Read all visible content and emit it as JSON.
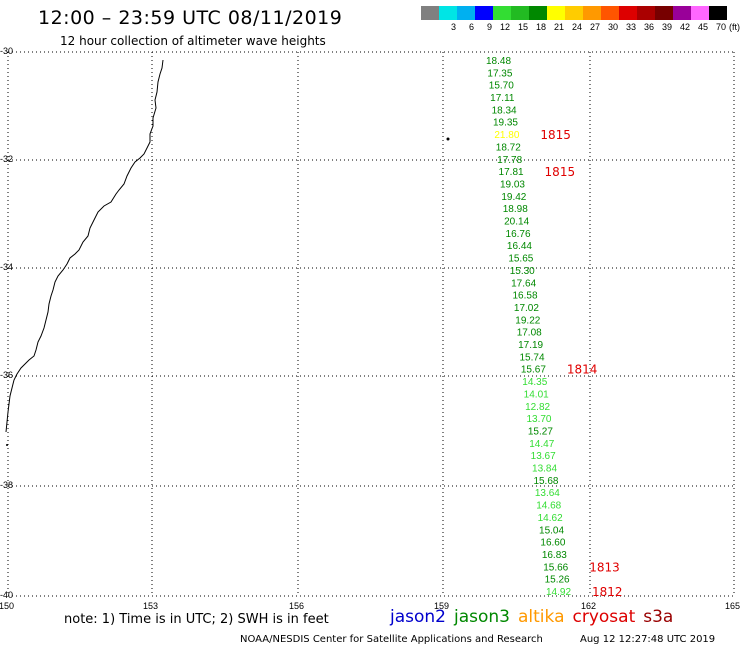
{
  "header": {
    "title": "12:00 – 23:59 UTC 08/11/2019",
    "subtitle": "12 hour collection of altimeter wave heights"
  },
  "legend": {
    "unit": "(ft)",
    "bins": [
      {
        "label": "",
        "color": "#808080"
      },
      {
        "label": "3",
        "color": "#00e5e5"
      },
      {
        "label": "6",
        "color": "#00b0f0"
      },
      {
        "label": "9",
        "color": "#0000ff"
      },
      {
        "label": "12",
        "color": "#33dd33"
      },
      {
        "label": "15",
        "color": "#22bb22"
      },
      {
        "label": "18",
        "color": "#008800"
      },
      {
        "label": "21",
        "color": "#ffff00"
      },
      {
        "label": "24",
        "color": "#ffcc00"
      },
      {
        "label": "27",
        "color": "#ff9900"
      },
      {
        "label": "30",
        "color": "#ff5500"
      },
      {
        "label": "33",
        "color": "#dd0000"
      },
      {
        "label": "36",
        "color": "#aa0000"
      },
      {
        "label": "39",
        "color": "#770000"
      },
      {
        "label": "42",
        "color": "#990099"
      },
      {
        "label": "45",
        "color": "#ff66ff"
      },
      {
        "label": "70",
        "color": "#000000"
      }
    ]
  },
  "axes": {
    "lat_ticks": [
      "-30",
      "-32",
      "-34",
      "-36",
      "-38",
      "-40"
    ],
    "lon_ticks": [
      "150",
      "153",
      "156",
      "159",
      "162",
      "165"
    ]
  },
  "observations": [
    {
      "value": "18.48",
      "color": "#008800"
    },
    {
      "value": "17.35",
      "color": "#008800"
    },
    {
      "value": "15.70",
      "color": "#008800"
    },
    {
      "value": "17.11",
      "color": "#008800"
    },
    {
      "value": "18.34",
      "color": "#008800"
    },
    {
      "value": "19.35",
      "color": "#008800"
    },
    {
      "value": "21.80",
      "color": "#ffff00"
    },
    {
      "value": "18.72",
      "color": "#008800"
    },
    {
      "value": "17.78",
      "color": "#008800"
    },
    {
      "value": "17.81",
      "color": "#008800"
    },
    {
      "value": "19.03",
      "color": "#008800"
    },
    {
      "value": "19.42",
      "color": "#008800"
    },
    {
      "value": "18.98",
      "color": "#008800"
    },
    {
      "value": "20.14",
      "color": "#008800"
    },
    {
      "value": "16.76",
      "color": "#008800"
    },
    {
      "value": "16.44",
      "color": "#008800"
    },
    {
      "value": "15.65",
      "color": "#008800"
    },
    {
      "value": "15.30",
      "color": "#008800"
    },
    {
      "value": "17.64",
      "color": "#008800"
    },
    {
      "value": "16.58",
      "color": "#008800"
    },
    {
      "value": "17.02",
      "color": "#008800"
    },
    {
      "value": "19.22",
      "color": "#008800"
    },
    {
      "value": "17.08",
      "color": "#008800"
    },
    {
      "value": "17.19",
      "color": "#008800"
    },
    {
      "value": "15.74",
      "color": "#008800"
    },
    {
      "value": "15.67",
      "color": "#008800"
    },
    {
      "value": "14.35",
      "color": "#33dd33"
    },
    {
      "value": "14.01",
      "color": "#33dd33"
    },
    {
      "value": "12.82",
      "color": "#33dd33"
    },
    {
      "value": "13.70",
      "color": "#33dd33"
    },
    {
      "value": "15.27",
      "color": "#008800"
    },
    {
      "value": "14.47",
      "color": "#33dd33"
    },
    {
      "value": "13.67",
      "color": "#33dd33"
    },
    {
      "value": "13.84",
      "color": "#33dd33"
    },
    {
      "value": "15.68",
      "color": "#008800"
    },
    {
      "value": "13.64",
      "color": "#33dd33"
    },
    {
      "value": "14.68",
      "color": "#33dd33"
    },
    {
      "value": "14.62",
      "color": "#33dd33"
    },
    {
      "value": "15.04",
      "color": "#008800"
    },
    {
      "value": "16.60",
      "color": "#008800"
    },
    {
      "value": "16.83",
      "color": "#008800"
    },
    {
      "value": "15.66",
      "color": "#008800"
    },
    {
      "value": "15.26",
      "color": "#008800"
    },
    {
      "value": "14.92",
      "color": "#33dd33"
    }
  ],
  "pass_labels": [
    {
      "text": "1815",
      "row": 6
    },
    {
      "text": "1815",
      "row": 9
    },
    {
      "text": "1814",
      "row": 25
    },
    {
      "text": "1813",
      "row": 41
    },
    {
      "text": "1812",
      "row": 43
    }
  ],
  "footer": {
    "note": "note:  1) Time is in UTC;  2) SWH is in feet",
    "satellites": [
      {
        "name": "jason2",
        "color": "#0000cc"
      },
      {
        "name": "jason3",
        "color": "#008800"
      },
      {
        "name": "altika",
        "color": "#ff9900"
      },
      {
        "name": "cryosat",
        "color": "#dd0000"
      },
      {
        "name": "s3a",
        "color": "#990000"
      }
    ],
    "credit": "NOAA/NESDIS Center for Satellite Applications and Research",
    "timestamp": "Aug 12 12:27:48 UTC 2019"
  }
}
